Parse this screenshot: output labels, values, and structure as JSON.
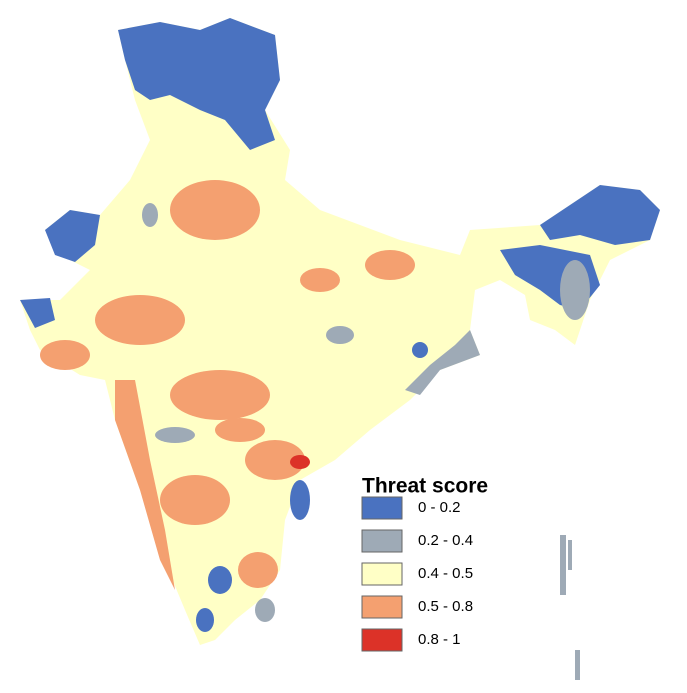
{
  "legend": {
    "title": "Threat score",
    "items": [
      {
        "label": "0 - 0.2",
        "color": "#4a72c0"
      },
      {
        "label": "0.2 - 0.4",
        "color": "#9eaab6"
      },
      {
        "label": "0.4 - 0.5",
        "color": "#ffffc6"
      },
      {
        "label": "0.5 - 0.8",
        "color": "#f4a070"
      },
      {
        "label": "0.8 - 1",
        "color": "#dc3228"
      }
    ]
  }
}
